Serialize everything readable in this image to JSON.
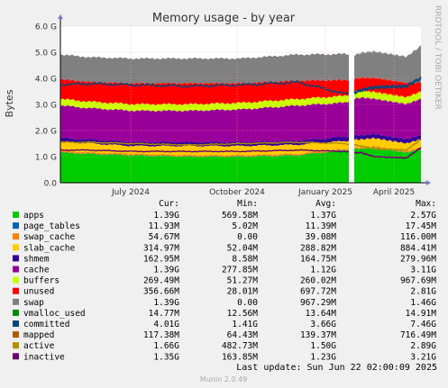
{
  "chart_data": {
    "type": "area",
    "title": "Memory usage - by year",
    "ylabel": "Bytes",
    "watermark": "RRDTOOL / TOBI OETIKER",
    "ylim": [
      0,
      6.0
    ],
    "y_unit": "G",
    "y_ticks": [
      "0.0",
      "1.0 G",
      "2.0 G",
      "3.0 G",
      "4.0 G",
      "5.0 G",
      "6.0 G"
    ],
    "x_ticks": [
      "July 2024",
      "October 2024",
      "January 2025",
      "April 2025"
    ],
    "grid": true,
    "legend_placement": "bottom",
    "column_headers": [
      "Cur:",
      "Min:",
      "Avg:",
      "Max:"
    ],
    "series": [
      {
        "name": "apps",
        "color": "#00cc00",
        "cur": "1.39G",
        "min": "569.58M",
        "avg": "1.37G",
        "max": "2.57G"
      },
      {
        "name": "page_tables",
        "color": "#0066b3",
        "cur": "11.93M",
        "min": "5.02M",
        "avg": "11.39M",
        "max": "17.45M"
      },
      {
        "name": "swap_cache",
        "color": "#ff8000",
        "cur": "54.67M",
        "min": "0.00",
        "avg": "39.08M",
        "max": "116.00M"
      },
      {
        "name": "slab_cache",
        "color": "#ffcc00",
        "cur": "314.97M",
        "min": "52.04M",
        "avg": "288.82M",
        "max": "884.41M"
      },
      {
        "name": "shmem",
        "color": "#330099",
        "cur": "162.95M",
        "min": "8.58M",
        "avg": "164.75M",
        "max": "279.96M"
      },
      {
        "name": "cache",
        "color": "#990099",
        "cur": "1.39G",
        "min": "277.85M",
        "avg": "1.12G",
        "max": "3.11G"
      },
      {
        "name": "buffers",
        "color": "#ccff00",
        "cur": "269.49M",
        "min": "51.27M",
        "avg": "260.02M",
        "max": "967.69M"
      },
      {
        "name": "unused",
        "color": "#ff0000",
        "cur": "356.66M",
        "min": "28.01M",
        "avg": "697.72M",
        "max": "2.81G"
      },
      {
        "name": "swap",
        "color": "#808080",
        "cur": "1.39G",
        "min": "0.00",
        "avg": "967.29M",
        "max": "1.46G"
      },
      {
        "name": "vmalloc_used",
        "color": "#008f00",
        "cur": "14.77M",
        "min": "12.56M",
        "avg": "13.64M",
        "max": "14.91M"
      },
      {
        "name": "committed",
        "color": "#00487d",
        "cur": "4.01G",
        "min": "1.41G",
        "avg": "3.66G",
        "max": "7.46G"
      },
      {
        "name": "mapped",
        "color": "#b35a00",
        "cur": "117.38M",
        "min": "64.43M",
        "avg": "139.37M",
        "max": "716.49M"
      },
      {
        "name": "active",
        "color": "#b38f00",
        "cur": "1.66G",
        "min": "482.73M",
        "avg": "1.50G",
        "max": "2.89G"
      },
      {
        "name": "inactive",
        "color": "#6b006b",
        "cur": "1.35G",
        "min": "163.85M",
        "avg": "1.23G",
        "max": "3.21G"
      }
    ],
    "stack_order": [
      "apps",
      "page_tables",
      "swap_cache",
      "slab_cache",
      "shmem",
      "cache",
      "buffers",
      "unused",
      "swap"
    ],
    "profile_fractions": [
      0,
      0.08,
      0.2,
      0.36,
      0.5,
      0.66,
      0.79,
      0.815,
      0.835,
      0.87,
      0.96,
      1
    ],
    "stack_values_G": {
      "apps": [
        1.15,
        1.1,
        1.05,
        1.0,
        1.0,
        1.05,
        1.25,
        1.3,
        1.3,
        1.35,
        1.15,
        1.3
      ],
      "page_tables": [
        0.01,
        0.01,
        0.01,
        0.01,
        0.01,
        0.01,
        0.01,
        0.01,
        0.01,
        0.01,
        0.01,
        0.01
      ],
      "swap_cache": [
        0.05,
        0.05,
        0.05,
        0.05,
        0.05,
        0.05,
        0.04,
        0.04,
        0.05,
        0.05,
        0.05,
        0.05
      ],
      "slab_cache": [
        0.35,
        0.35,
        0.3,
        0.35,
        0.35,
        0.35,
        0.3,
        0.3,
        0.3,
        0.3,
        0.3,
        0.31
      ],
      "shmem": [
        0.15,
        0.15,
        0.15,
        0.15,
        0.15,
        0.15,
        0.17,
        0.17,
        0.16,
        0.16,
        0.16,
        0.16
      ],
      "cache": [
        1.25,
        1.2,
        1.2,
        1.2,
        1.25,
        1.35,
        1.3,
        1.4,
        1.45,
        1.35,
        1.35,
        1.39
      ],
      "buffers": [
        0.25,
        0.25,
        0.25,
        0.25,
        0.25,
        0.25,
        0.26,
        0.26,
        0.26,
        0.26,
        0.26,
        0.27
      ],
      "unused": [
        0.75,
        0.75,
        0.8,
        0.8,
        0.75,
        0.7,
        0.6,
        0.5,
        0.5,
        0.55,
        0.55,
        0.36
      ],
      "swap": [
        0.95,
        0.95,
        0.95,
        0.95,
        0.95,
        1.0,
        1.0,
        0.9,
        0.95,
        1.0,
        1.0,
        1.39
      ]
    },
    "line_values_G": {
      "committed": [
        3.75,
        3.8,
        3.75,
        3.7,
        3.75,
        3.85,
        3.4,
        3.45,
        3.55,
        3.65,
        3.7,
        4.01
      ],
      "active": [
        1.55,
        1.55,
        1.5,
        1.45,
        1.5,
        1.55,
        1.5,
        1.45,
        1.4,
        1.3,
        1.25,
        1.66
      ],
      "inactive": [
        1.25,
        1.25,
        1.2,
        1.2,
        1.2,
        1.25,
        1.2,
        1.15,
        1.15,
        1.0,
        0.95,
        1.35
      ]
    },
    "gap_fraction": [
      0.8,
      0.815
    ]
  },
  "footer": {
    "last_update": "Last update: Sun Jun 22 02:00:09 2025",
    "version": "Munin 2.0.49"
  }
}
